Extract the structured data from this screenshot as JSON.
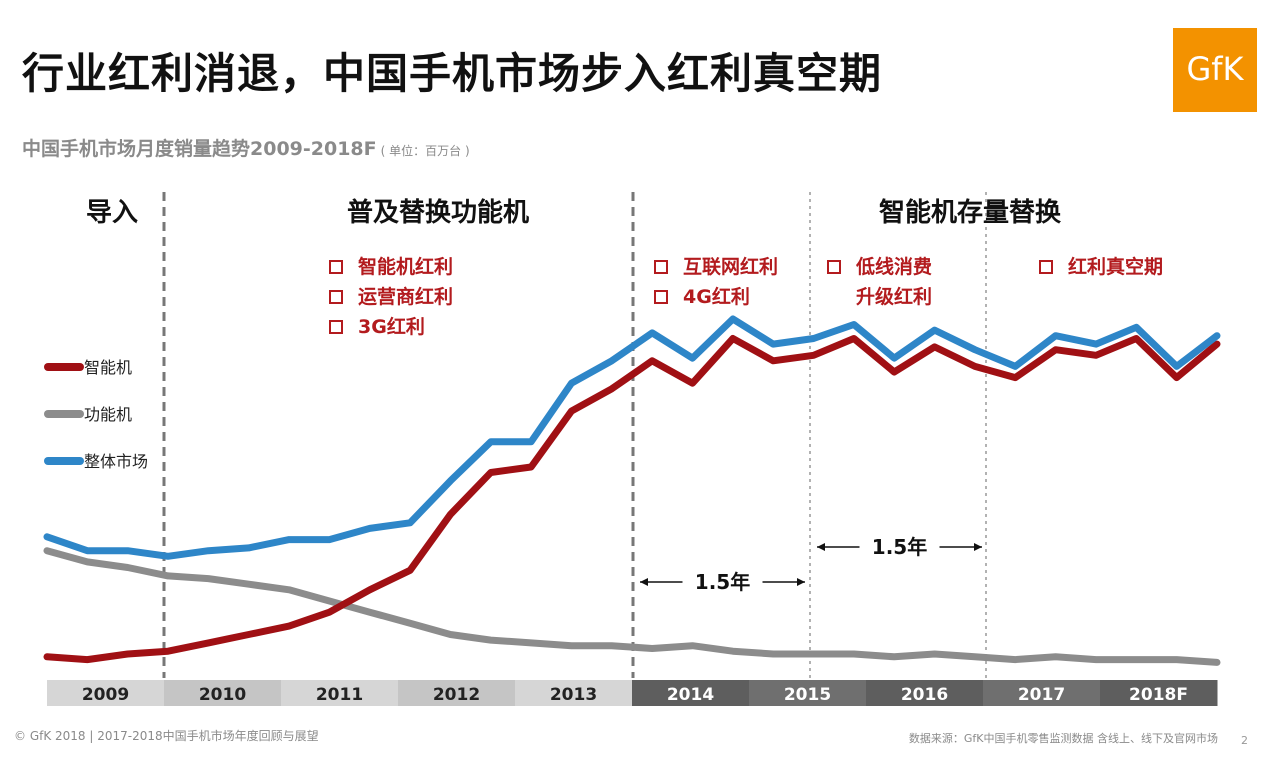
{
  "title": "行业红利消退，中国手机市场步入红利真空期",
  "brand_logo": "GfK",
  "subtitle": "中国手机市场月度销量趋势2009-2018F",
  "unit": "( 单位：百万台 )",
  "footer_left": "© GfK 2018 | 2017-2018中国手机市场年度回顾与展望",
  "footer_right": "数据来源：GfK中国手机零售监测数据  含线上、线下及官网市场",
  "page_number": "2",
  "colors": {
    "smart": "#a01014",
    "feature": "#8c8c8c",
    "total": "#2e86c8",
    "accent": "#b31b1e",
    "logo": "#f39200"
  },
  "chart_data": {
    "type": "line",
    "x_label_years": [
      "2009",
      "2010",
      "2011",
      "2012",
      "2013",
      "2014",
      "2015",
      "2016",
      "2017",
      "2018F"
    ],
    "phases": [
      "导入",
      "普及替换功能机",
      "智能机存量替换"
    ],
    "annotation_groups": [
      [
        "智能机红利",
        "运营商红利",
        "3G红利"
      ],
      [
        "互联网红利",
        "4G红利"
      ],
      [
        "低线消费",
        "升级红利"
      ],
      [
        "红利真空期"
      ]
    ],
    "intervals": [
      "1.5年",
      "1.5年"
    ],
    "series": [
      {
        "name": "智能机",
        "key": "smart",
        "values": [
          4,
          3,
          5,
          6,
          9,
          12,
          15,
          20,
          28,
          35,
          55,
          70,
          72,
          92,
          100,
          110,
          102,
          118,
          110,
          112,
          118,
          106,
          115,
          108,
          104,
          114,
          112,
          118,
          104,
          116
        ]
      },
      {
        "name": "功能机",
        "key": "feature",
        "values": [
          42,
          38,
          36,
          33,
          32,
          30,
          28,
          24,
          20,
          16,
          12,
          10,
          9,
          8,
          8,
          7,
          8,
          6,
          5,
          5,
          5,
          4,
          5,
          4,
          3,
          4,
          3,
          3,
          3,
          2
        ]
      },
      {
        "name": "整体市场",
        "key": "total",
        "values": [
          47,
          42,
          42,
          40,
          42,
          43,
          46,
          46,
          50,
          52,
          67,
          81,
          81,
          102,
          110,
          120,
          111,
          125,
          116,
          118,
          123,
          111,
          121,
          114,
          108,
          119,
          116,
          122,
          108,
          119
        ]
      }
    ]
  }
}
